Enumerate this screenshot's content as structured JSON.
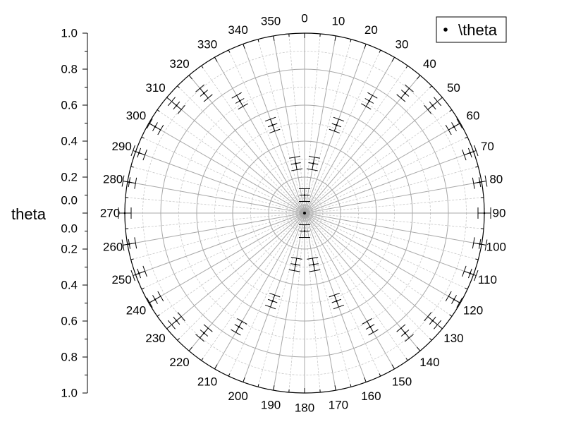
{
  "chart_data": {
    "type": "scatter",
    "coordinate_system": "polar",
    "angle_direction": "clockwise",
    "angle_zero": "top",
    "angle_ticks": [
      0,
      10,
      20,
      30,
      40,
      50,
      60,
      70,
      80,
      90,
      100,
      110,
      120,
      130,
      140,
      150,
      160,
      170,
      180,
      190,
      200,
      210,
      220,
      230,
      240,
      250,
      260,
      270,
      280,
      290,
      300,
      310,
      320,
      330,
      340,
      350
    ],
    "radial_axis": {
      "title": "theta",
      "range": [
        0,
        1.0
      ],
      "tick_labels_upper": [
        "1.0",
        "0.8",
        "0.6",
        "0.4",
        "0.2",
        "0.0"
      ],
      "tick_labels_lower": [
        "0.0",
        "0.2",
        "0.4",
        "0.6",
        "0.8",
        "1.0"
      ]
    },
    "grid": true,
    "legend": {
      "position": "top-right",
      "entries": [
        "\\theta"
      ]
    },
    "series": [
      {
        "name": "\\theta",
        "marker": "cross-with-error-bars",
        "color": "#000000",
        "points": [
          {
            "theta": 0,
            "r": 0.1
          },
          {
            "theta": 10,
            "r": 0.28
          },
          {
            "theta": 20,
            "r": 0.52
          },
          {
            "theta": 30,
            "r": 0.72
          },
          {
            "theta": 40,
            "r": 0.87
          },
          {
            "theta": 50,
            "r": 0.93
          },
          {
            "theta": 60,
            "r": 0.96
          },
          {
            "theta": 70,
            "r": 0.98
          },
          {
            "theta": 80,
            "r": 0.99
          },
          {
            "theta": 90,
            "r": 1.0
          },
          {
            "theta": 100,
            "r": 0.99
          },
          {
            "theta": 110,
            "r": 0.98
          },
          {
            "theta": 120,
            "r": 0.96
          },
          {
            "theta": 130,
            "r": 0.93
          },
          {
            "theta": 140,
            "r": 0.87
          },
          {
            "theta": 150,
            "r": 0.73
          },
          {
            "theta": 160,
            "r": 0.52
          },
          {
            "theta": 170,
            "r": 0.29
          },
          {
            "theta": 180,
            "r": 0.1
          },
          {
            "theta": 190,
            "r": 0.29
          },
          {
            "theta": 200,
            "r": 0.52
          },
          {
            "theta": 210,
            "r": 0.73
          },
          {
            "theta": 220,
            "r": 0.87
          },
          {
            "theta": 230,
            "r": 0.93
          },
          {
            "theta": 240,
            "r": 0.96
          },
          {
            "theta": 250,
            "r": 0.98
          },
          {
            "theta": 260,
            "r": 0.99
          },
          {
            "theta": 270,
            "r": 1.0
          },
          {
            "theta": 280,
            "r": 0.99
          },
          {
            "theta": 290,
            "r": 0.98
          },
          {
            "theta": 300,
            "r": 0.96
          },
          {
            "theta": 310,
            "r": 0.93
          },
          {
            "theta": 320,
            "r": 0.87
          },
          {
            "theta": 330,
            "r": 0.72
          },
          {
            "theta": 340,
            "r": 0.52
          },
          {
            "theta": 350,
            "r": 0.28
          }
        ]
      }
    ]
  }
}
